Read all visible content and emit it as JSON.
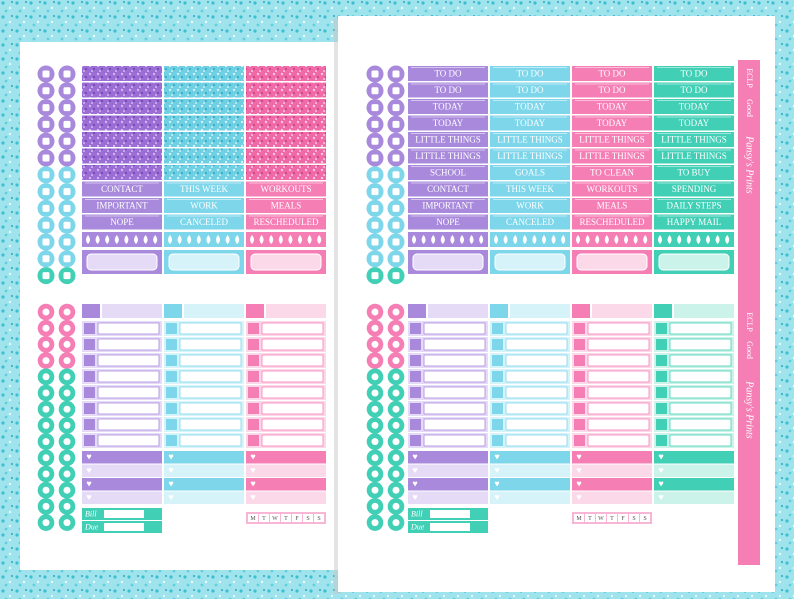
{
  "left_sheet": {
    "rows": [
      [
        "CONTACT",
        "THIS WEEK",
        "WORKOUTS"
      ],
      [
        "IMPORTANT",
        "WORK",
        "MEALS"
      ],
      [
        "NOPE",
        "CANCELED",
        "RESCHEDULED"
      ]
    ],
    "bill": "Bill",
    "due": "Due",
    "weekdays": [
      "M",
      "T",
      "W",
      "T",
      "F",
      "S",
      "S"
    ]
  },
  "right_sheet": {
    "rows": [
      [
        "TO DO",
        "TO DO",
        "TO DO",
        "TO DO"
      ],
      [
        "TO DO",
        "TO DO",
        "TO DO",
        "TO DO"
      ],
      [
        "TODAY",
        "TODAY",
        "TODAY",
        "TODAY"
      ],
      [
        "TODAY",
        "TODAY",
        "TODAY",
        "TODAY"
      ],
      [
        "LITTLE THINGS",
        "LITTLE THINGS",
        "LITTLE THINGS",
        "LITTLE THINGS"
      ],
      [
        "LITTLE THINGS",
        "LITTLE THINGS",
        "LITTLE THINGS",
        "LITTLE THINGS"
      ],
      [
        "SCHOOL",
        "GOALS",
        "TO CLEAN",
        "TO BUY"
      ],
      [
        "CONTACT",
        "THIS WEEK",
        "WORKOUTS",
        "SPENDING"
      ],
      [
        "IMPORTANT",
        "WORK",
        "MEALS",
        "DAILY STEPS"
      ],
      [
        "NOPE",
        "CANCELED",
        "RESCHEDULED",
        "HAPPY MAIL"
      ]
    ],
    "bill": "Bill",
    "due": "Due",
    "weekdays": [
      "M",
      "T",
      "W",
      "T",
      "F",
      "S",
      "S"
    ],
    "side_strip": [
      "ECLP",
      "Good",
      "Pansy's Prints",
      "ECLP",
      "Good",
      "Pansy's Prints"
    ]
  }
}
